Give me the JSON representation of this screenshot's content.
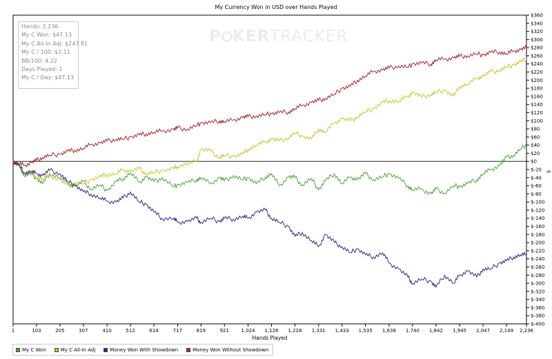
{
  "chart_data": {
    "type": "line",
    "title": "My Currency Won in USD over Hands Played",
    "xlabel": "Hands Played",
    "ylabel": "$",
    "xlim": [
      1,
      2236
    ],
    "ylim": [
      -400,
      360
    ],
    "x_ticks": [
      "1",
      "103",
      "205",
      "307",
      "410",
      "512",
      "614",
      "717",
      "819",
      "921",
      "1,024",
      "1,126",
      "1,228",
      "1,331",
      "1,433",
      "1,535",
      "1,638",
      "1,740",
      "1,842",
      "1,945",
      "2,047",
      "2,149",
      "2,236"
    ],
    "x_tick_values": [
      1,
      103,
      205,
      307,
      410,
      512,
      614,
      717,
      819,
      921,
      1024,
      1126,
      1228,
      1331,
      1433,
      1535,
      1638,
      1740,
      1842,
      1945,
      2047,
      2149,
      2236
    ],
    "y_ticks": [
      "$360",
      "$340",
      "$320",
      "$300",
      "$280",
      "$260",
      "$240",
      "$220",
      "$200",
      "$180",
      "$160",
      "$140",
      "$120",
      "$100",
      "$80",
      "$60",
      "$40",
      "$20",
      "$0",
      "$-20",
      "$-40",
      "$-60",
      "$-80",
      "$-100",
      "$-120",
      "$-140",
      "$-160",
      "$-180",
      "$-200",
      "$-220",
      "$-240",
      "$-260",
      "$-280",
      "$-300",
      "$-320",
      "$-340",
      "$-360",
      "$-380",
      "$-400"
    ],
    "y_tick_values": [
      360,
      340,
      320,
      300,
      280,
      260,
      240,
      220,
      200,
      180,
      160,
      140,
      120,
      100,
      80,
      60,
      40,
      20,
      0,
      -20,
      -40,
      -60,
      -80,
      -100,
      -120,
      -140,
      -160,
      -180,
      -200,
      -220,
      -240,
      -260,
      -280,
      -300,
      -320,
      -340,
      -360,
      -380,
      -400
    ],
    "grid": false,
    "legend_position": "bottom-left",
    "series": [
      {
        "name": "My C Won",
        "color": "#4fa63d",
        "x": [
          1,
          25,
          50,
          80,
          103,
          130,
          160,
          205,
          240,
          270,
          307,
          340,
          380,
          410,
          450,
          480,
          512,
          550,
          580,
          614,
          650,
          700,
          717,
          760,
          800,
          819,
          860,
          900,
          921,
          960,
          1000,
          1024,
          1060,
          1100,
          1126,
          1160,
          1200,
          1228,
          1260,
          1300,
          1331,
          1360,
          1400,
          1433,
          1470,
          1500,
          1535,
          1570,
          1610,
          1638,
          1680,
          1720,
          1740,
          1780,
          1820,
          1842,
          1880,
          1920,
          1945,
          1980,
          2020,
          2047,
          2080,
          2120,
          2149,
          2180,
          2210,
          2236
        ],
        "y": [
          0,
          -10,
          -35,
          -30,
          -42,
          -55,
          -30,
          -40,
          -55,
          -62,
          -50,
          -68,
          -58,
          -72,
          -50,
          -42,
          -28,
          -52,
          -38,
          -50,
          -40,
          -62,
          -58,
          -52,
          -45,
          -40,
          -55,
          -40,
          -48,
          -35,
          -45,
          -40,
          -55,
          -38,
          -30,
          -60,
          -38,
          -40,
          -58,
          -42,
          -70,
          -48,
          -30,
          -55,
          -38,
          -45,
          -30,
          -45,
          -38,
          -30,
          -42,
          -60,
          -70,
          -68,
          -80,
          -68,
          -78,
          -60,
          -62,
          -55,
          -45,
          -30,
          -20,
          -10,
          10,
          15,
          30,
          42
        ]
      },
      {
        "name": "My C All-In Adj",
        "color": "#c9c438",
        "x": [
          1,
          25,
          50,
          80,
          103,
          130,
          160,
          205,
          240,
          270,
          307,
          340,
          380,
          410,
          450,
          480,
          512,
          550,
          580,
          614,
          650,
          700,
          717,
          760,
          800,
          819,
          860,
          900,
          921,
          960,
          1000,
          1024,
          1060,
          1100,
          1126,
          1160,
          1200,
          1228,
          1260,
          1300,
          1331,
          1360,
          1400,
          1433,
          1470,
          1500,
          1535,
          1570,
          1610,
          1638,
          1680,
          1720,
          1740,
          1780,
          1820,
          1842,
          1880,
          1920,
          1945,
          1980,
          2020,
          2047,
          2080,
          2120,
          2149,
          2180,
          2210,
          2236
        ],
        "y": [
          0,
          -10,
          -30,
          -25,
          -40,
          -42,
          -35,
          -45,
          -60,
          -52,
          -55,
          -45,
          -38,
          -32,
          -30,
          -20,
          -25,
          -18,
          -30,
          -28,
          -22,
          -18,
          -12,
          -5,
          0,
          30,
          25,
          10,
          15,
          12,
          18,
          30,
          40,
          48,
          55,
          50,
          58,
          70,
          62,
          55,
          80,
          72,
          95,
          105,
          100,
          110,
          122,
          130,
          145,
          150,
          148,
          160,
          170,
          158,
          165,
          170,
          175,
          160,
          185,
          190,
          205,
          210,
          220,
          225,
          232,
          238,
          245,
          252
        ]
      },
      {
        "name": "Money Won With Showdown",
        "color": "#2e2e8c",
        "x": [
          1,
          25,
          50,
          80,
          103,
          130,
          160,
          205,
          240,
          270,
          307,
          340,
          380,
          410,
          450,
          480,
          512,
          550,
          580,
          614,
          650,
          700,
          717,
          760,
          800,
          819,
          860,
          900,
          921,
          960,
          1000,
          1024,
          1060,
          1100,
          1126,
          1160,
          1200,
          1228,
          1260,
          1300,
          1331,
          1360,
          1400,
          1433,
          1470,
          1500,
          1535,
          1570,
          1610,
          1638,
          1680,
          1720,
          1740,
          1780,
          1820,
          1842,
          1880,
          1920,
          1945,
          1980,
          2020,
          2047,
          2080,
          2120,
          2149,
          2180,
          2210,
          2236
        ],
        "y": [
          0,
          -10,
          -28,
          -25,
          -30,
          -35,
          -22,
          -30,
          -50,
          -58,
          -75,
          -80,
          -90,
          -98,
          -100,
          -90,
          -75,
          -100,
          -105,
          -125,
          -140,
          -140,
          -150,
          -148,
          -140,
          -150,
          -140,
          -148,
          -140,
          -142,
          -135,
          -140,
          -125,
          -120,
          -140,
          -150,
          -160,
          -185,
          -175,
          -195,
          -210,
          -180,
          -200,
          -210,
          -225,
          -215,
          -230,
          -235,
          -225,
          -250,
          -265,
          -285,
          -300,
          -290,
          -295,
          -310,
          -280,
          -300,
          -280,
          -270,
          -285,
          -265,
          -265,
          -250,
          -245,
          -235,
          -230,
          -230
        ]
      },
      {
        "name": "Money Won Without Showdown",
        "color": "#a52a2a",
        "x": [
          1,
          25,
          50,
          80,
          103,
          130,
          160,
          205,
          240,
          270,
          307,
          340,
          380,
          410,
          450,
          480,
          512,
          550,
          580,
          614,
          650,
          700,
          717,
          760,
          800,
          819,
          860,
          900,
          921,
          960,
          1000,
          1024,
          1060,
          1100,
          1126,
          1160,
          1200,
          1228,
          1260,
          1300,
          1331,
          1360,
          1400,
          1433,
          1470,
          1500,
          1535,
          1570,
          1610,
          1638,
          1680,
          1720,
          1740,
          1780,
          1820,
          1842,
          1880,
          1920,
          1945,
          1980,
          2020,
          2047,
          2080,
          2120,
          2149,
          2180,
          2210,
          2236
        ],
        "y": [
          0,
          -5,
          -10,
          -3,
          2,
          10,
          15,
          18,
          25,
          28,
          32,
          42,
          45,
          50,
          55,
          55,
          60,
          65,
          68,
          72,
          75,
          78,
          82,
          80,
          88,
          95,
          95,
          100,
          98,
          102,
          108,
          110,
          112,
          115,
          118,
          120,
          122,
          130,
          138,
          145,
          150,
          155,
          165,
          180,
          185,
          200,
          210,
          222,
          225,
          230,
          235,
          232,
          240,
          242,
          240,
          250,
          252,
          255,
          258,
          260,
          265,
          262,
          268,
          270,
          265,
          272,
          275,
          280
        ]
      }
    ]
  },
  "stats": {
    "hands": "Hands: 2,236",
    "won": "My C Won: $47.13",
    "allin_adj": "My C All-In Adj: $247.81",
    "per100": "My C / 100: $2.11",
    "bb100": "BB/100: 4.22",
    "days": "Days Played: 1",
    "per_day": "My C / Day: $47.13"
  },
  "watermark": {
    "part1": "P",
    "part2": "KER",
    "part3": "TRACKER"
  },
  "legend": {
    "items": [
      {
        "label": "My C Won",
        "color": "#4fa63d"
      },
      {
        "label": "My C All-In Adj",
        "color": "#c9c438"
      },
      {
        "label": "Money Won With Showdown",
        "color": "#2e2e8c"
      },
      {
        "label": "Money Won Without Showdown",
        "color": "#a52a2a"
      }
    ]
  }
}
